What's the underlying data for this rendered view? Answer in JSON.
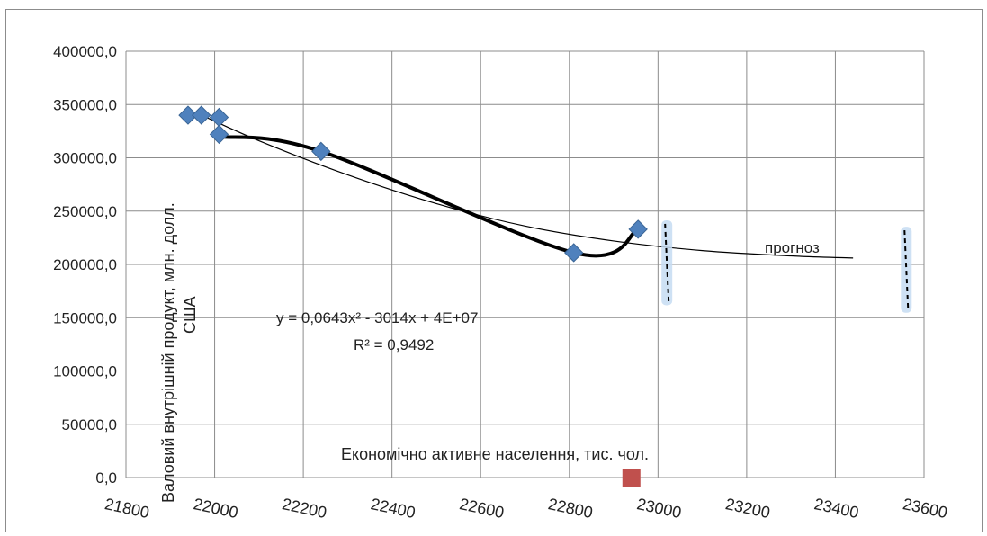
{
  "chart_data": {
    "type": "scatter",
    "title": "",
    "xlabel": "Економічно  активне населення, тис. чол.",
    "ylabel_line1": "Валовий внутрішній продукт, млн. долл.",
    "ylabel_line2": "США",
    "xlim": [
      21800,
      23600
    ],
    "ylim": [
      0,
      400000
    ],
    "x_ticks": [
      "21800",
      "22000",
      "22200",
      "22400",
      "22600",
      "22800",
      "23000",
      "23200",
      "23400",
      "23600"
    ],
    "y_ticks": [
      "0,0",
      "50000,0",
      "100000,0",
      "150000,0",
      "200000,0",
      "250000,0",
      "300000,0",
      "350000,0",
      "400000,0"
    ],
    "grid": true,
    "series": [
      {
        "points": [
          {
            "x": 21940,
            "y": 340000
          },
          {
            "x": 21970,
            "y": 340000
          },
          {
            "x": 22010,
            "y": 338000
          },
          {
            "x": 22010,
            "y": 322000
          },
          {
            "x": 22240,
            "y": 306000
          },
          {
            "x": 22810,
            "y": 211000
          },
          {
            "x": 22955,
            "y": 233000
          }
        ],
        "color": "#4f81bd"
      },
      {
        "points": [
          {
            "x": 22940,
            "y": 0
          }
        ],
        "color": "#c0504d"
      }
    ],
    "smooth_line": [
      {
        "x": 22010,
        "y": 320000
      },
      {
        "x": 22240,
        "y": 306000
      },
      {
        "x": 22810,
        "y": 211000
      },
      {
        "x": 22955,
        "y": 233000
      }
    ],
    "trendline": {
      "type": "polynomial",
      "points": [
        {
          "x": 21960,
          "y": 342000
        },
        {
          "x": 22100,
          "y": 316000
        },
        {
          "x": 22300,
          "y": 284000
        },
        {
          "x": 22500,
          "y": 257000
        },
        {
          "x": 22700,
          "y": 236000
        },
        {
          "x": 22900,
          "y": 222000
        },
        {
          "x": 23100,
          "y": 213000
        },
        {
          "x": 23300,
          "y": 208000
        },
        {
          "x": 23440,
          "y": 206000
        }
      ]
    },
    "forecast_markers": [
      {
        "x": 23020,
        "y_top": 238000,
        "y_bottom": 165000
      },
      {
        "x": 23560,
        "y_top": 232000,
        "y_bottom": 158000
      }
    ],
    "annotations": {
      "equation": "y = 0,0643x² - 3014x + 4E+07",
      "r_squared": "R² = 0,9492",
      "forecast_label": "прогноз"
    }
  }
}
